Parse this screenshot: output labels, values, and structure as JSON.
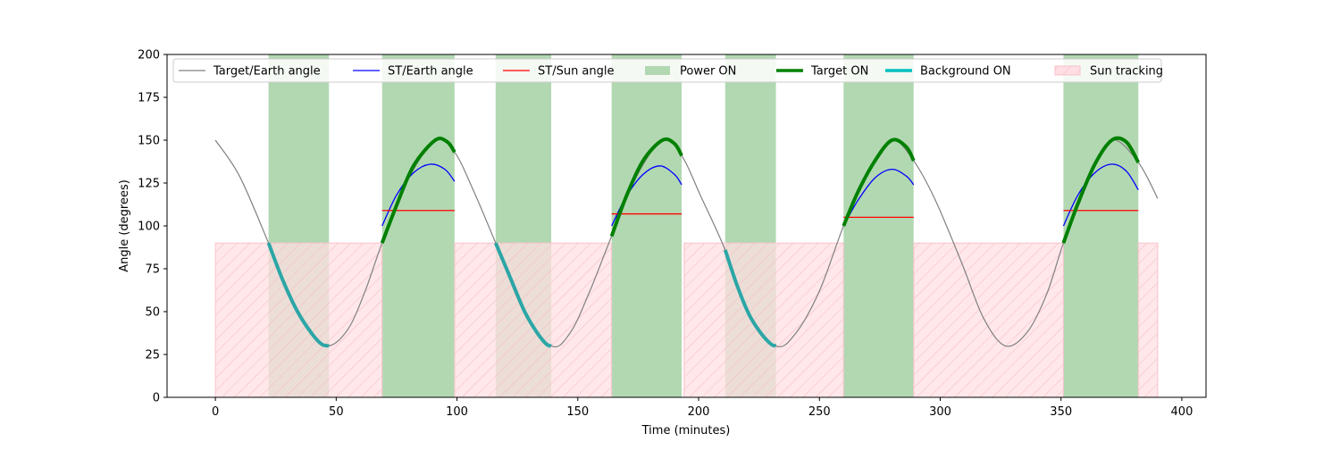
{
  "chart_data": {
    "type": "line",
    "title": "",
    "xlabel": "Time (minutes)",
    "ylabel": "Angle (degrees)",
    "xlim": [
      -20,
      410
    ],
    "ylim": [
      0,
      200
    ],
    "xticks": [
      0,
      50,
      100,
      150,
      200,
      250,
      300,
      350,
      400
    ],
    "yticks": [
      0,
      25,
      50,
      75,
      100,
      125,
      150,
      175,
      200
    ],
    "grid": false,
    "legend_position": "top",
    "colors": {
      "target_earth": "#808080",
      "st_earth": "#0000ff",
      "st_sun": "#ff0000",
      "power_on": "#b2d8b2",
      "target_on": "#008000",
      "background_on": "#2ca6a6",
      "sun_tracking": "#ffdfe3"
    },
    "legend": [
      {
        "key": "target_earth",
        "label": "Target/Earth angle",
        "style": "line"
      },
      {
        "key": "st_earth",
        "label": "ST/Earth angle",
        "style": "line"
      },
      {
        "key": "st_sun",
        "label": "ST/Sun angle",
        "style": "line"
      },
      {
        "key": "power_on",
        "label": "Power ON",
        "style": "patch"
      },
      {
        "key": "target_on",
        "label": "Target ON",
        "style": "thickline"
      },
      {
        "key": "background_on",
        "label": "Background ON",
        "style": "cyanline"
      },
      {
        "key": "sun_tracking",
        "label": "Sun tracking",
        "style": "hatch"
      }
    ],
    "series": [
      {
        "name": "Target/Earth angle",
        "x": [
          0,
          10,
          22,
          30,
          40,
          47,
          55,
          62,
          69,
          79,
          91,
          99,
          107,
          116,
          127,
          139,
          147,
          155,
          164,
          174,
          185,
          193,
          201,
          211,
          221,
          232,
          240,
          250,
          260,
          270,
          280,
          289,
          298,
          309,
          318,
          327,
          336,
          344,
          351,
          361,
          371,
          382,
          390
        ],
        "y": [
          150,
          129,
          90,
          62,
          37,
          30,
          40,
          62,
          90,
          125,
          150,
          143,
          120,
          90,
          52,
          30,
          38,
          62,
          94,
          128,
          150,
          141,
          117,
          86,
          48,
          30,
          37,
          62,
          100,
          132,
          150,
          138,
          115,
          78,
          46,
          30,
          38,
          60,
          90,
          128,
          150,
          137,
          116
        ]
      },
      {
        "name": "ST/Earth angle",
        "segments": [
          {
            "x": [
              69,
              75,
              82,
              89,
              95,
              99
            ],
            "y": [
              100,
              118,
              131,
              136,
              133,
              126
            ]
          },
          {
            "x": [
              164,
              170,
              177,
              184,
              190,
              193
            ],
            "y": [
              100,
              117,
              130,
              135,
              130,
              124
            ]
          },
          {
            "x": [
              260,
              266,
              273,
              280,
              286,
              289
            ],
            "y": [
              100,
              115,
              128,
              133,
              129,
              124
            ]
          },
          {
            "x": [
              351,
              357,
              364,
              371,
              377,
              382
            ],
            "y": [
              100,
              118,
              131,
              136,
              132,
              121
            ]
          }
        ]
      },
      {
        "name": "ST/Sun angle",
        "segments": [
          {
            "x": [
              69,
              99
            ],
            "y": [
              109,
              109
            ]
          },
          {
            "x": [
              164,
              193
            ],
            "y": [
              107,
              107
            ]
          },
          {
            "x": [
              260,
              289
            ],
            "y": [
              105,
              105
            ]
          },
          {
            "x": [
              351,
              382
            ],
            "y": [
              109,
              109
            ]
          }
        ]
      },
      {
        "name": "Target ON",
        "segments": [
          {
            "x": [
              69,
              75,
              82,
              91,
              96,
              99
            ],
            "y": [
              90,
              112,
              135,
              150,
              149,
              143
            ]
          },
          {
            "x": [
              164,
              170,
              177,
              185,
              190,
              193
            ],
            "y": [
              94,
              117,
              138,
              150,
              148,
              141
            ]
          },
          {
            "x": [
              260,
              266,
              273,
              280,
              286,
              289
            ],
            "y": [
              100,
              120,
              138,
              150,
              146,
              138
            ]
          },
          {
            "x": [
              351,
              357,
              364,
              371,
              377,
              382
            ],
            "y": [
              90,
              113,
              136,
              150,
              149,
              137
            ]
          }
        ]
      },
      {
        "name": "Background ON",
        "segments": [
          {
            "x": [
              22,
              28,
              34,
              40,
              44,
              47
            ],
            "y": [
              90,
              68,
              50,
              37,
              31,
              30
            ]
          },
          {
            "x": [
              116,
              122,
              128,
              133,
              137,
              139
            ],
            "y": [
              90,
              70,
              50,
              38,
              31,
              30
            ]
          },
          {
            "x": [
              211,
              216,
              221,
              226,
              230,
              232
            ],
            "y": [
              86,
              65,
              48,
              37,
              31,
              30
            ]
          }
        ]
      }
    ],
    "power_on_intervals": [
      [
        22,
        47
      ],
      [
        69,
        99
      ],
      [
        116,
        139
      ],
      [
        164,
        193
      ],
      [
        211,
        232
      ],
      [
        260,
        289
      ],
      [
        351,
        382
      ]
    ],
    "sun_tracking_intervals": [
      [
        0,
        69
      ],
      [
        99,
        164
      ],
      [
        194,
        260
      ],
      [
        289,
        351
      ],
      [
        382,
        390
      ]
    ],
    "sun_tracking_level": 90
  }
}
